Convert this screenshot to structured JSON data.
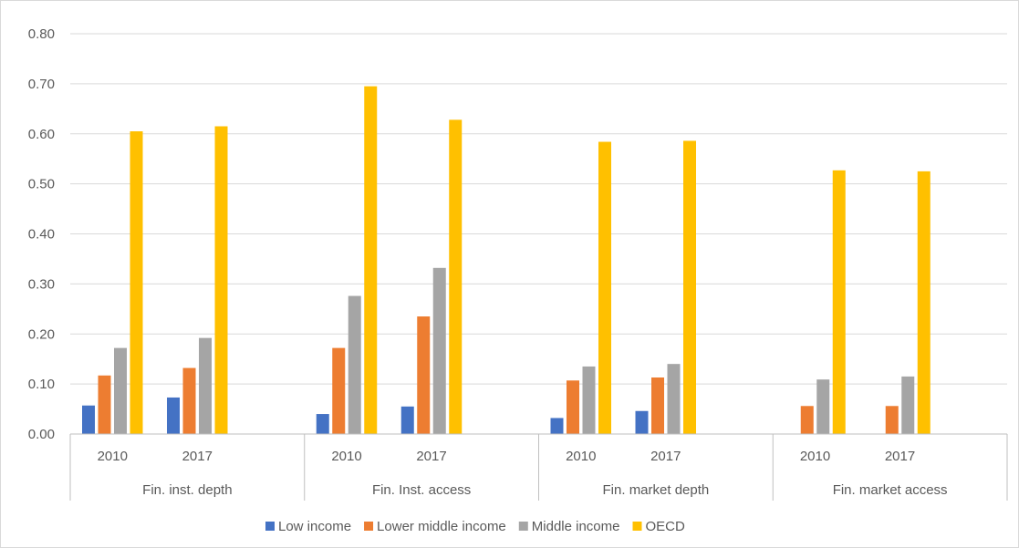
{
  "chart_data": {
    "type": "bar",
    "title": "",
    "xlabel": "",
    "ylabel": "",
    "ylim": [
      0,
      0.8
    ],
    "yticks": [
      "0.00",
      "0.10",
      "0.20",
      "0.30",
      "0.40",
      "0.50",
      "0.60",
      "0.70",
      "0.80"
    ],
    "grid": true,
    "legend_position": "bottom",
    "groups": [
      {
        "label": "Fin. inst. depth",
        "years": [
          "2010",
          "2017"
        ]
      },
      {
        "label": "Fin. Inst. access",
        "years": [
          "2010",
          "2017"
        ]
      },
      {
        "label": "Fin. market depth",
        "years": [
          "2010",
          "2017"
        ]
      },
      {
        "label": "Fin. market access",
        "years": [
          "2010",
          "2017"
        ]
      }
    ],
    "categories": [
      "Fin. inst. depth 2010",
      "Fin. inst. depth 2017",
      "Fin. Inst. access 2010",
      "Fin. Inst. access 2017",
      "Fin. market depth 2010",
      "Fin. market depth 2017",
      "Fin. market access 2010",
      "Fin. market access 2017"
    ],
    "series": [
      {
        "name": "Low income",
        "color": "#4472C4",
        "values": [
          0.057,
          0.073,
          0.04,
          0.055,
          0.032,
          0.046,
          0.0,
          0.0
        ]
      },
      {
        "name": "Lower middle income",
        "color": "#ED7D31",
        "values": [
          0.117,
          0.132,
          0.172,
          0.235,
          0.107,
          0.113,
          0.056,
          0.056
        ]
      },
      {
        "name": "Middle income",
        "color": "#A5A5A5",
        "values": [
          0.172,
          0.192,
          0.276,
          0.332,
          0.135,
          0.14,
          0.109,
          0.115
        ]
      },
      {
        "name": "OECD",
        "color": "#FFC000",
        "values": [
          0.605,
          0.615,
          0.695,
          0.628,
          0.584,
          0.586,
          0.527,
          0.525
        ]
      }
    ]
  }
}
